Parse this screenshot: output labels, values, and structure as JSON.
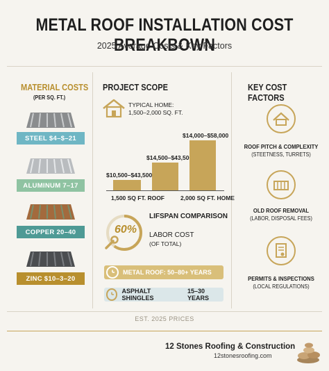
{
  "header": {
    "title": "METAL ROOF INSTALLATION COST BREAKBOWN",
    "subtitle": "2025 Average Costs & Key Factors"
  },
  "material": {
    "heading": "MATERIAL COSTS",
    "unit": "(PER SQ. FT.)",
    "items": [
      {
        "label": "STEEL   $4–$–21",
        "color": "#6fb6c4"
      },
      {
        "label": "ALUMINUM   7–17",
        "color": "#8fc3a2"
      },
      {
        "label": "COPPER   20–40",
        "color": "#4e9a95"
      },
      {
        "label": "ZINC   $10–3–20",
        "color": "#b88f2e"
      }
    ]
  },
  "scope": {
    "heading": "PROJECT SCOPE",
    "typical_label": "TYPICAL HOME:",
    "typical_size": "1,500–2,000 SQ. FT.",
    "bars": [
      {
        "range": "$10,500–$43,500"
      },
      {
        "range": "$14,500–$43,500"
      },
      {
        "range": "$14,000–$58,000"
      }
    ],
    "axis_left": "1,500 SQ FT. ROOF",
    "axis_right": "2,000 SQ FT. HOME",
    "lifespan_heading": "LIFSPAN COMPARISON",
    "labor_percent": "60%",
    "labor_label": "LABOR COST",
    "labor_note": "(OF TOTAL)",
    "lifespan": [
      "METAL ROOF: 50–80+ YEARS",
      "ASPHALT SHINGLES"
    ],
    "lifespan_asphalt_years": "15–30 YEARS"
  },
  "factors": {
    "heading": "KEY COST FACTORS",
    "items": [
      {
        "title": "ROOF PITCH & COMPLEXITY",
        "detail": "(STEETNESS, TURRETS)",
        "icon": "house-icon"
      },
      {
        "title": "OLD ROOF REMOVAL",
        "detail": "(LABOR, DISPOSAL FEES)",
        "icon": "dumpster-icon"
      },
      {
        "title": "PERMITS & INSPECTIONS",
        "detail": "(LOCAL REGULATIONS)",
        "icon": "document-icon"
      }
    ]
  },
  "footer": {
    "note": "EST. 2025 PRICES",
    "company": "12 Stones Roofing & Construction",
    "url": "12stonesroofing.com"
  },
  "colors": {
    "accent_gold": "#c7a559",
    "background": "#f6f4ef"
  }
}
